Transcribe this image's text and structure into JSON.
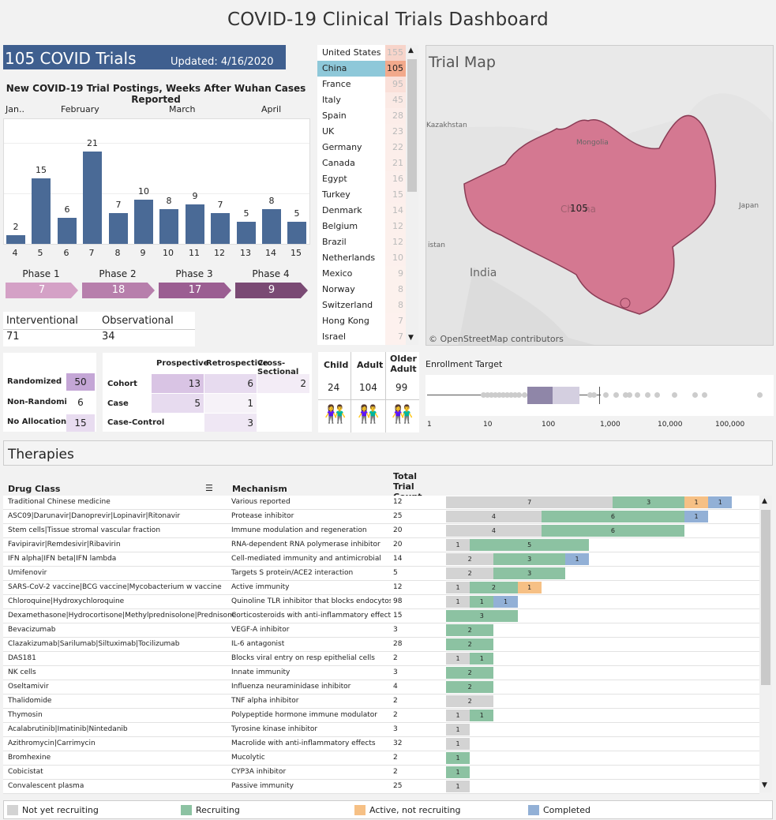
{
  "dashboard": {
    "title": "COVID-19 Clinical Trials Dashboard"
  },
  "summary": {
    "trials": "105 COVID Trials",
    "updated": "Updated: 4/16/2020"
  },
  "chart_data": {
    "type": "bar",
    "title": "New COVID-19 Trial Postings, Weeks After Wuhan Cases Reported",
    "months": [
      "Jan..",
      "February",
      "March",
      "April"
    ],
    "categories": [
      "4",
      "5",
      "6",
      "7",
      "8",
      "9",
      "10",
      "11",
      "12",
      "13",
      "14",
      "15"
    ],
    "values": [
      2,
      15,
      6,
      21,
      7,
      10,
      8,
      9,
      7,
      5,
      8,
      5
    ],
    "ylim": [
      0,
      25
    ]
  },
  "phases": [
    {
      "label": "Phase 1",
      "value": "7",
      "color": "#d4a1c6"
    },
    {
      "label": "Phase 2",
      "value": "18",
      "color": "#b77fac"
    },
    {
      "label": "Phase 3",
      "value": "17",
      "color": "#9b5e92"
    },
    {
      "label": "Phase 4",
      "value": "9",
      "color": "#7a4a74"
    }
  ],
  "study_type": {
    "h1": "Interventional",
    "h2": "Observational",
    "v1": "71",
    "v2": "34"
  },
  "allocation": [
    {
      "label": "Randomized",
      "value": "50"
    },
    {
      "label": "Non-Randomized",
      "value": "6"
    },
    {
      "label": "No Allocation",
      "value": "15"
    }
  ],
  "design": {
    "cols": [
      "Prospective",
      "Retrospective",
      "Cross-Sectional"
    ],
    "rows": [
      {
        "label": "Cohort",
        "vals": [
          "13",
          "6",
          "2"
        ]
      },
      {
        "label": "Case",
        "vals": [
          "5",
          "1",
          ""
        ]
      },
      {
        "label": "Case-Control",
        "vals": [
          "",
          "3",
          ""
        ]
      }
    ]
  },
  "countries": [
    [
      "United States",
      "155"
    ],
    [
      "China",
      "105"
    ],
    [
      "France",
      "95"
    ],
    [
      "Italy",
      "45"
    ],
    [
      "Spain",
      "28"
    ],
    [
      "UK",
      "23"
    ],
    [
      "Germany",
      "22"
    ],
    [
      "Canada",
      "21"
    ],
    [
      "Egypt",
      "16"
    ],
    [
      "Turkey",
      "15"
    ],
    [
      "Denmark",
      "14"
    ],
    [
      "Belgium",
      "12"
    ],
    [
      "Brazil",
      "12"
    ],
    [
      "Netherlands",
      "10"
    ],
    [
      "Mexico",
      "9"
    ],
    [
      "Norway",
      "8"
    ],
    [
      "Switzerland",
      "8"
    ],
    [
      "Hong Kong",
      "7"
    ],
    [
      "Israel",
      "7"
    ]
  ],
  "map": {
    "title": "Trial Map",
    "selected_value": "105",
    "labels": [
      "Kazakhstan",
      "Mongolia",
      "Japan",
      "India",
      "istan",
      "Ch",
      "na"
    ],
    "attribution": "© OpenStreetMap contributors"
  },
  "age": {
    "cols": [
      "Child",
      "Adult",
      "Older Adult"
    ],
    "vals": [
      "24",
      "104",
      "99"
    ]
  },
  "enrollment": {
    "title": "Enrollment Target",
    "ticks": [
      "1",
      "10",
      "100",
      "1,000",
      "10,000",
      "100,000"
    ]
  },
  "therapies": {
    "title": "Therapies",
    "h_drug": "Drug Class",
    "h_mech": "Mechanism",
    "h_total": "Total Trial Count",
    "rows": [
      [
        "Traditional Chinese medicine",
        "Various reported",
        "12",
        [
          [
            "7",
            7,
            "n"
          ],
          [
            "3",
            3,
            "r"
          ],
          [
            "1",
            1,
            "a"
          ],
          [
            "1",
            1,
            "c"
          ]
        ]
      ],
      [
        "ASC09|Darunavir|Danoprevir|Lopinavir|Ritonavir",
        "Protease inhibitor",
        "25",
        [
          [
            "4",
            4,
            "n"
          ],
          [
            "6",
            6,
            "r"
          ],
          [
            "1",
            1,
            "c"
          ]
        ]
      ],
      [
        "Stem cells|Tissue stromal vascular fraction",
        "Immune modulation and regeneration",
        "20",
        [
          [
            "4",
            4,
            "n"
          ],
          [
            "6",
            6,
            "r"
          ]
        ]
      ],
      [
        "Favipiravir|Remdesivir|Ribavirin",
        "RNA-dependent RNA polymerase inhibitor",
        "20",
        [
          [
            "1",
            1,
            "n"
          ],
          [
            "5",
            5,
            "r"
          ]
        ]
      ],
      [
        "IFN alpha|IFN beta|IFN lambda",
        "Cell-mediated immunity and antimicrobial",
        "14",
        [
          [
            "2",
            2,
            "n"
          ],
          [
            "3",
            3,
            "r"
          ],
          [
            "1",
            1,
            "c"
          ]
        ]
      ],
      [
        "Umifenovir",
        "Targets S protein/ACE2 interaction",
        "5",
        [
          [
            "2",
            2,
            "n"
          ],
          [
            "3",
            3,
            "r"
          ]
        ]
      ],
      [
        "SARS-CoV-2 vaccine|BCG vaccine|Mycobacterium w vaccine",
        "Active immunity",
        "12",
        [
          [
            "1",
            1,
            "n"
          ],
          [
            "2",
            2,
            "r"
          ],
          [
            "1",
            1,
            "a"
          ]
        ]
      ],
      [
        "Chloroquine|Hydroxychloroquine",
        "Quinoline TLR inhibitor that blocks endocytos..",
        "98",
        [
          [
            "1",
            1,
            "n"
          ],
          [
            "1",
            1,
            "r"
          ],
          [
            "1",
            1,
            "c"
          ]
        ]
      ],
      [
        "Dexamethasone|Hydrocortisone|Methylprednisolone|Prednisone",
        "Corticosteroids with anti-inflammatory effects",
        "15",
        [
          [
            "3",
            3,
            "r"
          ]
        ]
      ],
      [
        "Bevacizumab",
        "VEGF-A inhibitor",
        "3",
        [
          [
            "2",
            2,
            "r"
          ]
        ]
      ],
      [
        "Clazakizumab|Sarilumab|Siltuximab|Tocilizumab",
        "IL-6 antagonist",
        "28",
        [
          [
            "2",
            2,
            "r"
          ]
        ]
      ],
      [
        "DAS181",
        "Blocks viral entry on resp epithelial cells",
        "2",
        [
          [
            "1",
            1,
            "n"
          ],
          [
            "1",
            1,
            "r"
          ]
        ]
      ],
      [
        "NK cells",
        "Innate immunity",
        "3",
        [
          [
            "2",
            2,
            "r"
          ]
        ]
      ],
      [
        "Oseltamivir",
        "Influenza neuraminidase inhibitor",
        "4",
        [
          [
            "2",
            2,
            "r"
          ]
        ]
      ],
      [
        "Thalidomide",
        "TNF alpha inhibitor",
        "2",
        [
          [
            "2",
            2,
            "n"
          ]
        ]
      ],
      [
        "Thymosin",
        "Polypeptide hormone immune modulator",
        "2",
        [
          [
            "1",
            1,
            "n"
          ],
          [
            "1",
            1,
            "r"
          ]
        ]
      ],
      [
        "Acalabrutinib|Imatinib|Nintedanib",
        "Tyrosine kinase inhibitor",
        "3",
        [
          [
            "1",
            1,
            "n"
          ]
        ]
      ],
      [
        "Azithromycin|Carrimycin",
        "Macrolide with anti-inflammatory effects",
        "32",
        [
          [
            "1",
            1,
            "n"
          ]
        ]
      ],
      [
        "Bromhexine",
        "Mucolytic",
        "2",
        [
          [
            "1",
            1,
            "r"
          ]
        ]
      ],
      [
        "Cobicistat",
        "CYP3A inhibitor",
        "2",
        [
          [
            "1",
            1,
            "r"
          ]
        ]
      ],
      [
        "Convalescent plasma",
        "Passive immunity",
        "25",
        [
          [
            "1",
            1,
            "n"
          ]
        ]
      ]
    ]
  },
  "legend": [
    {
      "label": "Not yet recruiting",
      "color": "#d3d3d3"
    },
    {
      "label": "Recruiting",
      "color": "#8cc2a2"
    },
    {
      "label": "Active, not recruiting",
      "color": "#f6c085"
    },
    {
      "label": "Completed",
      "color": "#92b0d6"
    }
  ]
}
